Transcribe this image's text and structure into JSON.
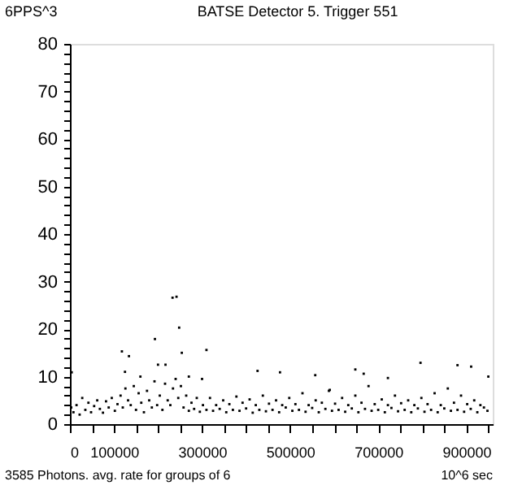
{
  "chart_data": {
    "type": "scatter",
    "title": "BATSE Detector 5. Trigger 551",
    "ylabel": "6PPS^3",
    "xlabel": "3585 Photons. avg. rate for groups of 6",
    "annotations": [
      "10^6 sec"
    ],
    "xlim": [
      0,
      960000
    ],
    "ylim": [
      0,
      80
    ],
    "marker": "square",
    "grid": false,
    "legend": false,
    "xticks": [
      0,
      {
        "value": 50000,
        "label": null
      },
      100000,
      {
        "value": 150000,
        "label": null
      },
      {
        "value": 200000,
        "label": null
      },
      {
        "value": 250000,
        "label": null
      },
      300000,
      {
        "value": 350000,
        "label": null
      },
      {
        "value": 400000,
        "label": null
      },
      {
        "value": 450000,
        "label": null
      },
      500000,
      {
        "value": 550000,
        "label": null
      },
      {
        "value": 600000,
        "label": null
      },
      {
        "value": 650000,
        "label": null
      },
      700000,
      {
        "value": 750000,
        "label": null
      },
      {
        "value": 800000,
        "label": null
      },
      {
        "value": 850000,
        "label": null
      },
      900000,
      {
        "value": 950000,
        "label": null
      }
    ],
    "yticks": [
      0,
      {
        "value": 2,
        "label": null
      },
      {
        "value": 4,
        "label": null
      },
      {
        "value": 6,
        "label": null
      },
      {
        "value": 8,
        "label": null
      },
      10,
      {
        "value": 12,
        "label": null
      },
      {
        "value": 14,
        "label": null
      },
      {
        "value": 16,
        "label": null
      },
      {
        "value": 18,
        "label": null
      },
      20,
      {
        "value": 22,
        "label": null
      },
      {
        "value": 24,
        "label": null
      },
      {
        "value": 26,
        "label": null
      },
      {
        "value": 28,
        "label": null
      },
      30,
      {
        "value": 32,
        "label": null
      },
      {
        "value": 34,
        "label": null
      },
      {
        "value": 36,
        "label": null
      },
      {
        "value": 38,
        "label": null
      },
      40,
      {
        "value": 42,
        "label": null
      },
      {
        "value": 44,
        "label": null
      },
      {
        "value": 46,
        "label": null
      },
      {
        "value": 48,
        "label": null
      },
      50,
      {
        "value": 52,
        "label": null
      },
      {
        "value": 54,
        "label": null
      },
      {
        "value": 56,
        "label": null
      },
      {
        "value": 58,
        "label": null
      },
      60,
      {
        "value": 62,
        "label": null
      },
      {
        "value": 64,
        "label": null
      },
      {
        "value": 66,
        "label": null
      },
      {
        "value": 68,
        "label": null
      },
      70,
      {
        "value": 72,
        "label": null
      },
      {
        "value": 74,
        "label": null
      },
      {
        "value": 76,
        "label": null
      },
      {
        "value": 78,
        "label": null
      },
      80
    ],
    "series": [
      {
        "color": "#000000",
        "x": [
          3000,
          8000,
          15000,
          22000,
          28000,
          35000,
          42000,
          48000,
          55000,
          62000,
          68000,
          75000,
          82000,
          88000,
          95000,
          102000,
          108000,
          115000,
          120000,
          126000,
          132000,
          138000,
          145000,
          150000,
          156000,
          162000,
          168000,
          175000,
          180000,
          186000,
          192000,
          198000,
          204000,
          210000,
          216000,
          222000,
          228000,
          234000,
          240000,
          246000,
          252000,
          258000,
          264000,
          270000,
          276000,
          282000,
          288000,
          295000,
          302000,
          310000,
          318000,
          325000,
          332000,
          340000,
          348000,
          355000,
          362000,
          370000,
          378000,
          385000,
          392000,
          400000,
          408000,
          415000,
          422000,
          430000,
          438000,
          445000,
          452000,
          460000,
          468000,
          475000,
          482000,
          490000,
          498000,
          505000,
          512000,
          520000,
          528000,
          535000,
          542000,
          550000,
          558000,
          565000,
          572000,
          580000,
          588000,
          595000,
          602000,
          610000,
          618000,
          625000,
          632000,
          640000,
          648000,
          655000,
          662000,
          670000,
          678000,
          685000,
          692000,
          700000,
          708000,
          715000,
          722000,
          730000,
          738000,
          745000,
          752000,
          760000,
          768000,
          775000,
          782000,
          790000,
          798000,
          805000,
          812000,
          820000,
          828000,
          835000,
          842000,
          850000,
          858000,
          865000,
          872000,
          880000,
          888000,
          895000,
          902000,
          910000,
          918000,
          925000,
          932000,
          940000,
          948000,
          233000,
          242000,
          248000,
          193000,
          118000,
          134000,
          310000,
          217000,
          254000,
          4000,
          426000,
          477000,
          557000,
          648000,
          667000,
          722000,
          796000,
          880000,
          911000,
          125000,
          160000,
          200000,
          270000,
          300000,
          590000,
          950000
        ],
        "values": [
          3.5,
          2.5,
          4,
          2,
          5.5,
          3,
          4.5,
          2.5,
          3.8,
          5,
          3.2,
          2.4,
          4.8,
          3.5,
          5.5,
          2.8,
          4.2,
          6,
          3.5,
          7.5,
          5,
          4,
          8,
          3,
          6.5,
          4.5,
          2.5,
          7,
          5,
          3.5,
          9,
          4,
          6,
          3,
          8.5,
          5,
          4,
          7.5,
          9.5,
          5.5,
          8,
          3.5,
          6,
          2.8,
          4.5,
          3.2,
          5.5,
          2.6,
          4,
          3,
          5.5,
          2.8,
          4,
          3.2,
          5,
          2.5,
          4.2,
          3,
          5.8,
          2.8,
          4.5,
          3.3,
          5.2,
          2.4,
          4,
          3,
          6,
          2.7,
          4.3,
          3,
          5,
          2.5,
          4,
          3.5,
          5.5,
          2.8,
          4.2,
          3,
          6.5,
          2.6,
          4,
          3.4,
          5,
          2.5,
          4.5,
          3.2,
          7,
          2.8,
          4.3,
          3,
          5.5,
          2.6,
          4,
          3.3,
          6,
          2.5,
          4.5,
          3.2,
          8,
          2.8,
          4.2,
          3,
          5.2,
          2.5,
          4,
          3.4,
          6,
          2.7,
          4.4,
          3,
          5,
          2.5,
          4,
          3.3,
          5.5,
          2.6,
          4.2,
          3,
          6.5,
          2.5,
          4,
          3.3,
          7.5,
          2.8,
          4.5,
          3,
          6,
          2.6,
          4.2,
          3.2,
          5,
          2.5,
          4,
          3.5,
          2.8,
          26.6,
          26.8,
          20.3,
          17.9,
          15.3,
          14.3,
          15.6,
          12.5,
          15,
          10.9,
          11.2,
          10.9,
          10.3,
          11.5,
          10.6,
          9.7,
          12.9,
          12.4,
          12.1,
          11,
          10,
          12.5,
          10,
          9.5,
          7.2,
          10
        ]
      }
    ]
  }
}
